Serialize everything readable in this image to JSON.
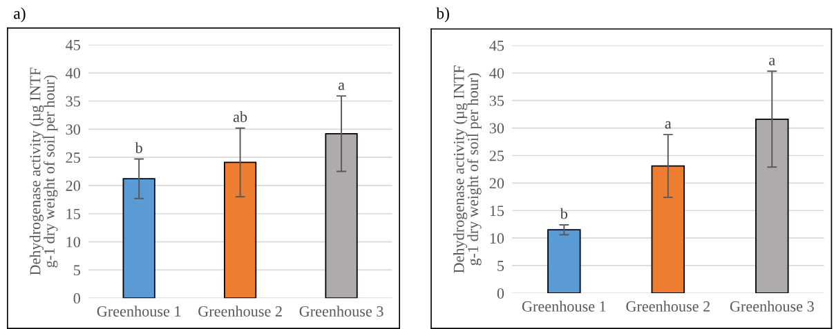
{
  "chart_data": [
    {
      "type": "bar",
      "title": "a)",
      "ylabel": "Dehydrogenase activity (µg INTF\ng-1 dry weight of soil per hour)",
      "categories": [
        "Greenhouse 1",
        "Greenhouse 2",
        "Greenhouse 3"
      ],
      "values": [
        21.2,
        24.1,
        29.2
      ],
      "errors": [
        3.5,
        6.1,
        6.7
      ],
      "colors": [
        "#5b9bd5",
        "#ed7d31",
        "#afabab"
      ],
      "ylim": [
        0,
        45
      ],
      "yticks": [
        0,
        5,
        10,
        15,
        20,
        25,
        30,
        35,
        40,
        45
      ],
      "grid": "y",
      "annotations": [
        {
          "text": "b",
          "x": "Greenhouse 1",
          "y": 24.7
        },
        {
          "text": "ab",
          "x": "Greenhouse 2",
          "y": 30.2
        },
        {
          "text": "a",
          "x": "Greenhouse 3",
          "y": 35.9
        }
      ]
    },
    {
      "type": "bar",
      "title": "b)",
      "ylabel": "Dehydrogenase activity (µg INTF\ng-1 dry weight of soil per hour)",
      "categories": [
        "Greenhouse 1",
        "Greenhouse 2",
        "Greenhouse 3"
      ],
      "values": [
        11.5,
        23.1,
        31.6
      ],
      "errors": [
        0.9,
        5.7,
        8.7
      ],
      "colors": [
        "#5b9bd5",
        "#ed7d31",
        "#afabab"
      ],
      "ylim": [
        0,
        45
      ],
      "yticks": [
        0,
        5,
        10,
        15,
        20,
        25,
        30,
        35,
        40,
        45
      ],
      "grid": "y",
      "annotations": [
        {
          "text": "b",
          "x": "Greenhouse 1",
          "y": 12.4
        },
        {
          "text": "a",
          "x": "Greenhouse 2",
          "y": 28.8
        },
        {
          "text": "a",
          "x": "Greenhouse 3",
          "y": 40.3
        }
      ]
    }
  ]
}
